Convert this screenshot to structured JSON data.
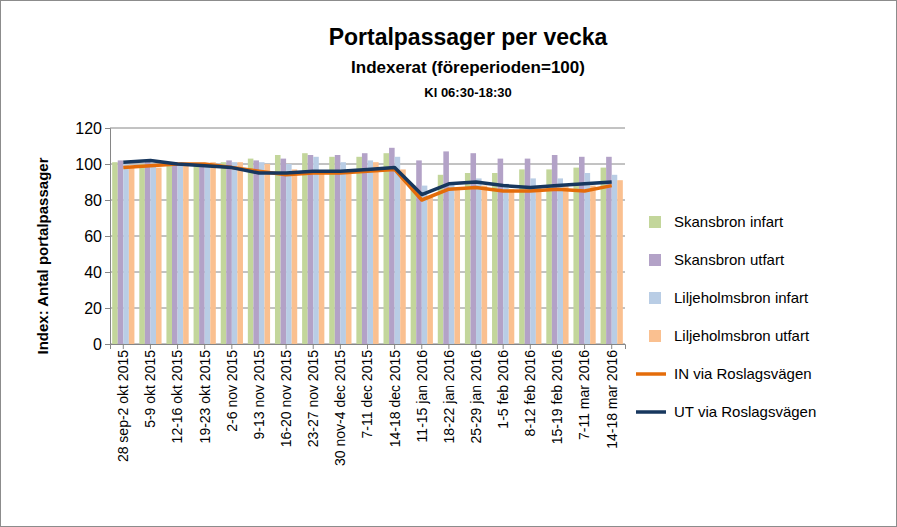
{
  "chart_data": {
    "type": "bar",
    "title": "Portalpassager per vecka",
    "subtitle": "Indexerat (föreperioden=100)",
    "annotations": [
      "Kl 06:30-18:30"
    ],
    "y_label": "Index: Antal portalpassager",
    "categories": [
      "28 sep-2 okt 2015",
      "5-9 okt 2015",
      "12-16 okt 2015",
      "19-23 okt 2015",
      "2-6 nov 2015",
      "9-13 nov 2015",
      "16-20 nov 2015",
      "23-27 nov 2015",
      "30 nov-4 dec 2015",
      "7-11 dec 2015",
      "14-18 dec 2015",
      "11-15 jan 2016",
      "18-22 jan 2016",
      "25-29 jan 2016",
      "1-5 feb 2016",
      "8-12 feb 2016",
      "15-19 feb 2016",
      "7-11 mar 2016",
      "14-18 mar 2016"
    ],
    "series": [
      {
        "name": "Skansbron infart",
        "type": "bar",
        "color": "#c3d69b",
        "values": [
          101,
          100,
          100,
          100,
          101,
          103,
          105,
          106,
          104,
          104,
          106,
          88,
          94,
          95,
          95,
          97,
          97,
          98,
          98
        ]
      },
      {
        "name": "Skansbron utfart",
        "type": "bar",
        "color": "#b3a2c7",
        "values": [
          102,
          101,
          100,
          100,
          102,
          102,
          103,
          105,
          105,
          106,
          109,
          102,
          107,
          106,
          103,
          103,
          105,
          104,
          104
        ]
      },
      {
        "name": "Liljeholmsbron infart",
        "type": "bar",
        "color": "#b9cde5",
        "values": [
          100,
          99,
          99,
          99,
          101,
          101,
          100,
          104,
          101,
          102,
          104,
          88,
          90,
          92,
          89,
          92,
          92,
          95,
          94
        ]
      },
      {
        "name": "Liljeholmsbron utfart",
        "type": "bar",
        "color": "#fac090",
        "values": [
          99,
          98,
          100,
          101,
          101,
          100,
          97,
          96,
          96,
          101,
          97,
          82,
          87,
          88,
          86,
          87,
          88,
          88,
          91
        ]
      },
      {
        "name": "IN via Roslagsvägen",
        "type": "line",
        "color": "#e46c0a",
        "values": [
          98,
          99,
          100,
          100,
          98,
          96,
          94,
          95,
          95,
          96,
          97,
          80,
          86,
          87,
          85,
          85,
          86,
          85,
          88
        ]
      },
      {
        "name": "UT via Roslagsvägen",
        "type": "line",
        "color": "#17375e",
        "values": [
          101,
          102,
          100,
          99,
          98,
          95,
          95,
          96,
          96,
          97,
          98,
          83,
          89,
          90,
          88,
          87,
          88,
          89,
          90
        ]
      }
    ],
    "ylim": [
      0,
      120
    ],
    "yticks": [
      0,
      20,
      40,
      60,
      80,
      100,
      120
    ],
    "grid": true,
    "legend": "right"
  }
}
